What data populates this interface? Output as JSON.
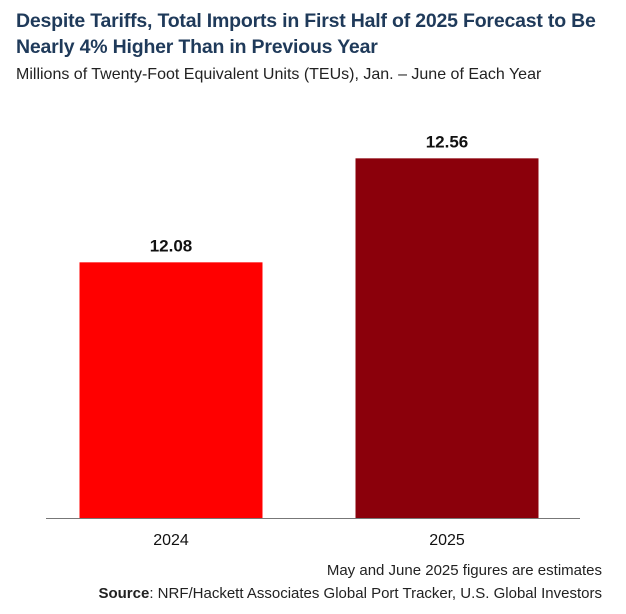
{
  "header": {
    "title": "Despite Tariffs, Total Imports in First Half of 2025 Forecast to Be Nearly 4% Higher Than in Previous Year",
    "subtitle": "Millions of Twenty-Foot Equivalent Units (TEUs), Jan. – June of Each Year"
  },
  "footer": {
    "note": "May and June 2025 figures are estimates",
    "source_label": "Source",
    "source_text": ": NRF/Hackett Associates Global Port Tracker, U.S. Global Investors"
  },
  "chart_data": {
    "type": "bar",
    "categories": [
      "2024",
      "2025"
    ],
    "values": [
      12.08,
      12.56
    ],
    "value_labels": [
      "12.08",
      "12.56"
    ],
    "colors": [
      "#ff0000",
      "#8b000b"
    ],
    "title": "Despite Tariffs, Total Imports in First Half of 2025 Forecast to Be Nearly 4% Higher Than in Previous Year",
    "subtitle": "Millions of Twenty-Foot Equivalent Units (TEUs), Jan. – June of Each Year",
    "xlabel": "",
    "ylabel": "",
    "ylim": [
      10.9,
      12.7
    ],
    "grid": false,
    "legend": "none"
  }
}
